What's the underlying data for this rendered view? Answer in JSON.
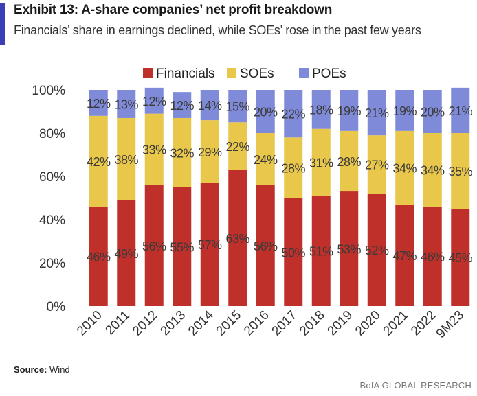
{
  "header": {
    "title": "Exhibit 13: A-share companies’ net profit breakdown",
    "subtitle": "Financials’ share in earnings declined, while SOEs’ rose in the past few years"
  },
  "footer": {
    "source_label": "Source:",
    "source_value": "Wind",
    "brand": "BofA GLOBAL RESEARCH"
  },
  "colors": {
    "accent": "#3b3fb5",
    "financials": "#c0302a",
    "soes": "#e9c74b",
    "poes": "#7f8bd9"
  },
  "chart_data": {
    "type": "bar",
    "stacked": true,
    "title": "",
    "xlabel": "",
    "ylabel": "",
    "ylim": [
      0,
      100
    ],
    "yticks": [
      "0%",
      "20%",
      "40%",
      "60%",
      "80%",
      "100%"
    ],
    "categories": [
      "2010",
      "2011",
      "2012",
      "2013",
      "2014",
      "2015",
      "2016",
      "2017",
      "2018",
      "2019",
      "2020",
      "2021",
      "2022",
      "9M23"
    ],
    "legend_position": "top",
    "series": [
      {
        "name": "Financials",
        "color": "#c0302a",
        "values": [
          46,
          49,
          56,
          55,
          57,
          63,
          56,
          50,
          51,
          53,
          52,
          47,
          46,
          45
        ]
      },
      {
        "name": "SOEs",
        "color": "#e9c74b",
        "values": [
          42,
          38,
          33,
          32,
          29,
          22,
          24,
          28,
          31,
          28,
          27,
          34,
          34,
          35
        ]
      },
      {
        "name": "POEs",
        "color": "#7f8bd9",
        "values": [
          12,
          13,
          12,
          12,
          14,
          15,
          20,
          22,
          18,
          19,
          21,
          19,
          20,
          21
        ]
      }
    ]
  }
}
